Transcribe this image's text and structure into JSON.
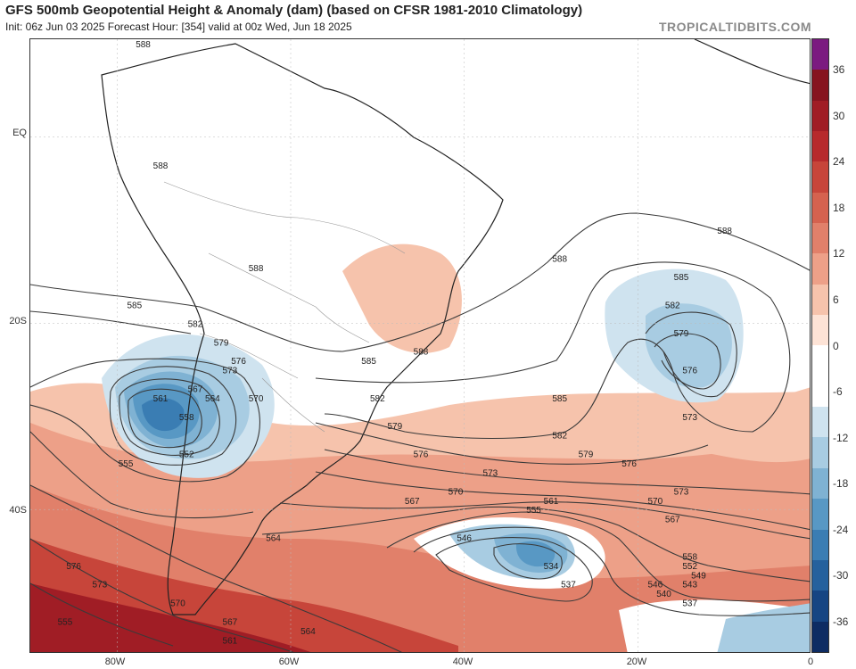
{
  "header": {
    "title": "GFS 500mb Geopotential Height & Anomaly (dam) (based on CFSR 1981-2010 Climatology)",
    "subtitle": "Init: 06z Jun 03 2025   Forecast Hour: [354]   valid at 00z Wed, Jun 18 2025",
    "credit": "TROPICALTIDBITS.COM"
  },
  "axes": {
    "lat_labels": [
      "EQ",
      "20S",
      "40S"
    ],
    "lon_labels": [
      "80W",
      "60W",
      "40W",
      "20W",
      "0"
    ]
  },
  "colorbar": {
    "ticks": [
      "36",
      "30",
      "24",
      "18",
      "12",
      "6",
      "0",
      "-6",
      "-12",
      "-18",
      "-24",
      "-30",
      "-36"
    ],
    "colors": [
      "#7b1a80",
      "#86141f",
      "#a01d25",
      "#b72a2c",
      "#c7453a",
      "#d5624f",
      "#e1806a",
      "#eda088",
      "#f6c3ac",
      "#fde3d6",
      "#ffffff",
      "#ffffff",
      "#cfe3ef",
      "#a8cce2",
      "#7fb2d3",
      "#5898c4",
      "#3a7db3",
      "#25619d",
      "#164583",
      "#0e2c63"
    ]
  },
  "contour_labels": [
    {
      "text": "588",
      "lon": -77,
      "lat": 10
    },
    {
      "text": "588",
      "lon": -75,
      "lat": -3
    },
    {
      "text": "588",
      "lon": -64,
      "lat": -14
    },
    {
      "text": "585",
      "lon": -78,
      "lat": -18
    },
    {
      "text": "582",
      "lon": -71,
      "lat": -20
    },
    {
      "text": "579",
      "lon": -68,
      "lat": -22
    },
    {
      "text": "576",
      "lon": -66,
      "lat": -24
    },
    {
      "text": "573",
      "lon": -67,
      "lat": -25
    },
    {
      "text": "570",
      "lon": -64,
      "lat": -28
    },
    {
      "text": "567",
      "lon": -71,
      "lat": -27
    },
    {
      "text": "564",
      "lon": -69,
      "lat": -28
    },
    {
      "text": "561",
      "lon": -75,
      "lat": -28
    },
    {
      "text": "558",
      "lon": -72,
      "lat": -30
    },
    {
      "text": "552",
      "lon": -72,
      "lat": -34
    },
    {
      "text": "555",
      "lon": -79,
      "lat": -35
    },
    {
      "text": "585",
      "lon": -51,
      "lat": -24
    },
    {
      "text": "588",
      "lon": -45,
      "lat": -23
    },
    {
      "text": "582",
      "lon": -50,
      "lat": -28
    },
    {
      "text": "579",
      "lon": -48,
      "lat": -31
    },
    {
      "text": "576",
      "lon": -45,
      "lat": -34
    },
    {
      "text": "588",
      "lon": -29,
      "lat": -13
    },
    {
      "text": "588",
      "lon": -10,
      "lat": -10
    },
    {
      "text": "585",
      "lon": -15,
      "lat": -15
    },
    {
      "text": "582",
      "lon": -16,
      "lat": -18
    },
    {
      "text": "579",
      "lon": -15,
      "lat": -21
    },
    {
      "text": "576",
      "lon": -14,
      "lat": -25
    },
    {
      "text": "573",
      "lon": -14,
      "lat": -30
    },
    {
      "text": "585",
      "lon": -29,
      "lat": -28
    },
    {
      "text": "582",
      "lon": -29,
      "lat": -32
    },
    {
      "text": "579",
      "lon": -26,
      "lat": -34
    },
    {
      "text": "576",
      "lon": -21,
      "lat": -35
    },
    {
      "text": "573",
      "lon": -37,
      "lat": -36
    },
    {
      "text": "573",
      "lon": -15,
      "lat": -38
    },
    {
      "text": "570",
      "lon": -41,
      "lat": -38
    },
    {
      "text": "570",
      "lon": -18,
      "lat": -39
    },
    {
      "text": "567",
      "lon": -46,
      "lat": -39
    },
    {
      "text": "567",
      "lon": -16,
      "lat": -41
    },
    {
      "text": "561",
      "lon": -30,
      "lat": -39
    },
    {
      "text": "555",
      "lon": -32,
      "lat": -40
    },
    {
      "text": "564",
      "lon": -62,
      "lat": -43
    },
    {
      "text": "546",
      "lon": -40,
      "lat": -43
    },
    {
      "text": "534",
      "lon": -30,
      "lat": -46
    },
    {
      "text": "537",
      "lon": -28,
      "lat": -48
    },
    {
      "text": "558",
      "lon": -14,
      "lat": -45
    },
    {
      "text": "552",
      "lon": -14,
      "lat": -46
    },
    {
      "text": "549",
      "lon": -13,
      "lat": -47
    },
    {
      "text": "546",
      "lon": -18,
      "lat": -48
    },
    {
      "text": "543",
      "lon": -14,
      "lat": -48
    },
    {
      "text": "540",
      "lon": -17,
      "lat": -49
    },
    {
      "text": "537",
      "lon": -14,
      "lat": -50
    },
    {
      "text": "576",
      "lon": -85,
      "lat": -46
    },
    {
      "text": "573",
      "lon": -82,
      "lat": -48
    },
    {
      "text": "570",
      "lon": -73,
      "lat": -50
    },
    {
      "text": "567",
      "lon": -67,
      "lat": -52
    },
    {
      "text": "564",
      "lon": -58,
      "lat": -53
    },
    {
      "text": "561",
      "lon": -67,
      "lat": -54
    },
    {
      "text": "555",
      "lon": -86,
      "lat": -52
    }
  ]
}
